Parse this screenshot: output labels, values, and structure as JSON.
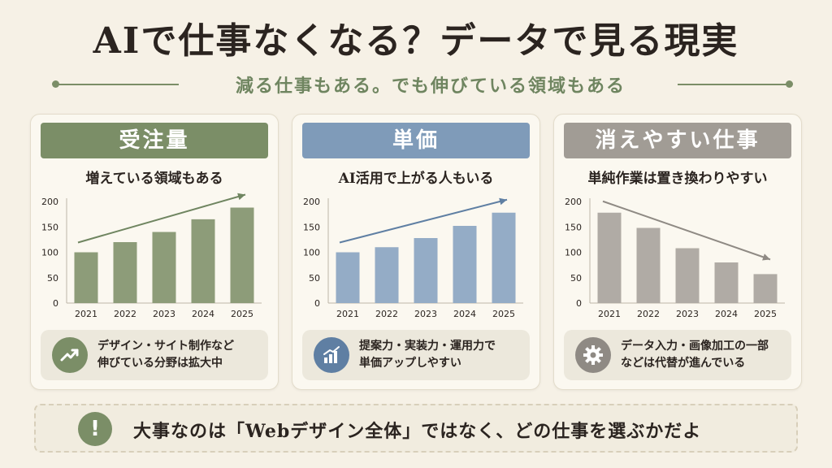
{
  "title": "AIで仕事なくなる？データで見る現実",
  "subtitle": "減る仕事もある。でも伸びている領域もある",
  "colors": {
    "green": "#7b8e67",
    "blue": "#7f9bb9",
    "gray": "#a8a39d"
  },
  "cards": [
    {
      "header": "受注量",
      "subheading": "増えている領域もある",
      "icon": "trending-up-icon",
      "note_line1": "デザイン・サイト制作など",
      "note_line2": "伸びている分野は拡大中"
    },
    {
      "header": "単価",
      "subheading": "AI活用で上がる人もいる",
      "icon": "bar-chart-icon",
      "note_line1": "提案力・実装力・運用力で",
      "note_line2": "単価アップしやすい"
    },
    {
      "header": "消えやすい仕事",
      "subheading": "単純作業は置き換わりやすい",
      "icon": "gear-icon",
      "note_line1": "データ入力・画像加工の一部",
      "note_line2": "などは代替が進んでいる"
    }
  ],
  "chart_data": [
    {
      "type": "bar",
      "categories": [
        "2021",
        "2022",
        "2023",
        "2024",
        "2025"
      ],
      "values": [
        100,
        120,
        140,
        165,
        188
      ],
      "ylim": [
        0,
        200
      ],
      "yticks": [
        0,
        50,
        100,
        150,
        200
      ],
      "trend": "up",
      "color": "#8d9c79"
    },
    {
      "type": "bar",
      "categories": [
        "2021",
        "2022",
        "2023",
        "2024",
        "2025"
      ],
      "values": [
        100,
        110,
        128,
        152,
        178
      ],
      "ylim": [
        0,
        200
      ],
      "yticks": [
        0,
        50,
        100,
        150,
        200
      ],
      "trend": "up",
      "color": "#94acc6"
    },
    {
      "type": "bar",
      "categories": [
        "2021",
        "2022",
        "2023",
        "2024",
        "2025"
      ],
      "values": [
        178,
        148,
        108,
        80,
        57
      ],
      "ylim": [
        0,
        200
      ],
      "yticks": [
        0,
        50,
        100,
        150,
        200
      ],
      "trend": "down",
      "color": "#b0aba5"
    }
  ],
  "bottom_message": "大事なのは「Webデザイン全体」ではなく、どの仕事を選ぶかだよ",
  "bottom_icon": "!"
}
